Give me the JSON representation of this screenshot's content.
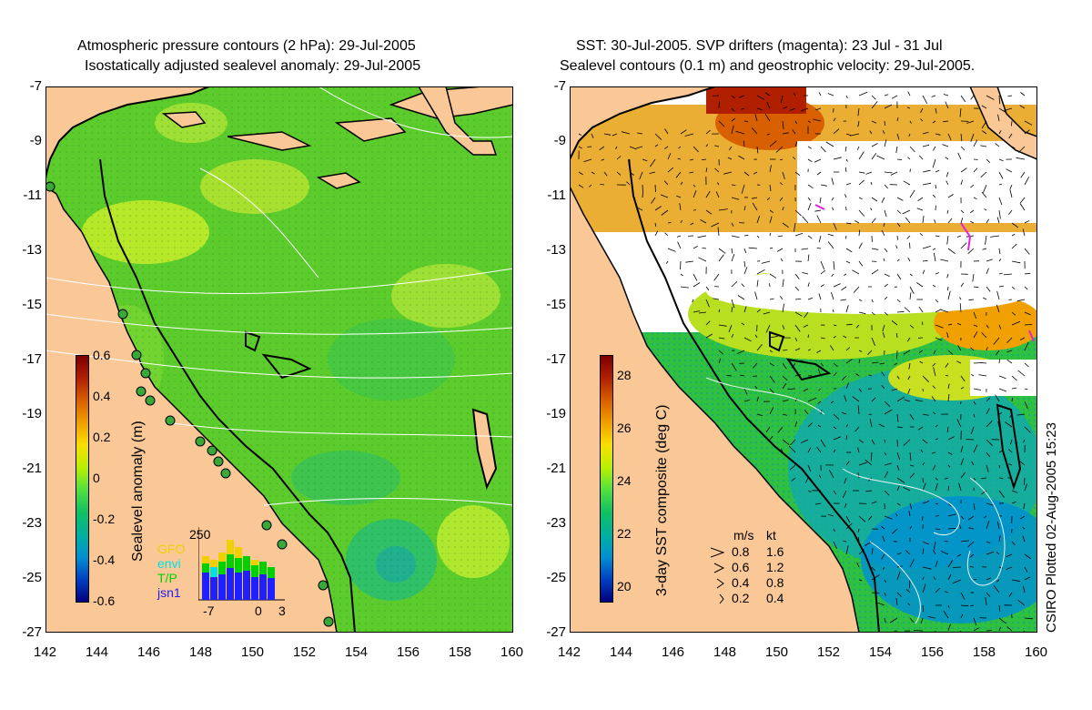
{
  "left_panel": {
    "title_line1": "Atmospheric pressure contours (2 hPa): 29-Jul-2005",
    "title_line2": "Isostatically adjusted sealevel anomaly: 29-Jul-2005",
    "colorbar": {
      "label": "Sealevel anomaly (m)",
      "ticks": [
        "0.6",
        "0.4",
        "0.2",
        "0",
        "-0.2",
        "-0.4",
        "-0.6"
      ],
      "colors": [
        "#7a0000",
        "#b02000",
        "#d86000",
        "#f0a000",
        "#f8e000",
        "#b8f000",
        "#50e040",
        "#10c060",
        "#00b0a0",
        "#0090d0",
        "#0040c0",
        "#000080"
      ]
    },
    "inset": {
      "y_max_label": "250",
      "missions": [
        {
          "name": "GFO",
          "color": "#f0d000"
        },
        {
          "name": "envi",
          "color": "#00e0e0"
        },
        {
          "name": "T/P",
          "color": "#00d000"
        },
        {
          "name": "jsn1",
          "color": "#2020ff"
        }
      ],
      "x_labels": [
        "-7",
        "0",
        "3"
      ]
    }
  },
  "right_panel": {
    "title_line1": "SST: 30-Jul-2005. SVP drifters (magenta): 23 Jul - 31 Jul",
    "title_line2": "Sealevel contours (0.1 m) and geostrophic velocity: 29-Jul-2005.",
    "colorbar": {
      "label": "3-day SST composite (deg C)",
      "ticks": [
        "28",
        "26",
        "24",
        "22",
        "20"
      ],
      "colors": [
        "#7a0000",
        "#b02000",
        "#d86000",
        "#f0a000",
        "#f8e000",
        "#b8f000",
        "#50e040",
        "#10c060",
        "#00b0a0",
        "#0090d0",
        "#0040c0",
        "#000080"
      ]
    },
    "velocity_legend": {
      "header_ms": "m/s",
      "header_kt": "kt",
      "rows": [
        {
          "ms": "0.8",
          "kt": "1.6"
        },
        {
          "ms": "0.6",
          "kt": "1.2"
        },
        {
          "ms": "0.4",
          "kt": "0.8"
        },
        {
          "ms": "0.2",
          "kt": "0.4"
        }
      ]
    },
    "credit": "CSIRO Plotted 02-Aug-2005 15:23"
  },
  "axes": {
    "lat_ticks": [
      "-7",
      "-9",
      "-11",
      "-13",
      "-15",
      "-17",
      "-19",
      "-21",
      "-23",
      "-25",
      "-27"
    ],
    "lon_ticks": [
      "142",
      "144",
      "146",
      "148",
      "150",
      "152",
      "154",
      "156",
      "158",
      "160"
    ]
  },
  "colors": {
    "land": "#f9c896",
    "ocean_green": "#60d030",
    "coast": "#000000",
    "contour": "#ffffff",
    "drifter_magenta": "#e020e0"
  }
}
